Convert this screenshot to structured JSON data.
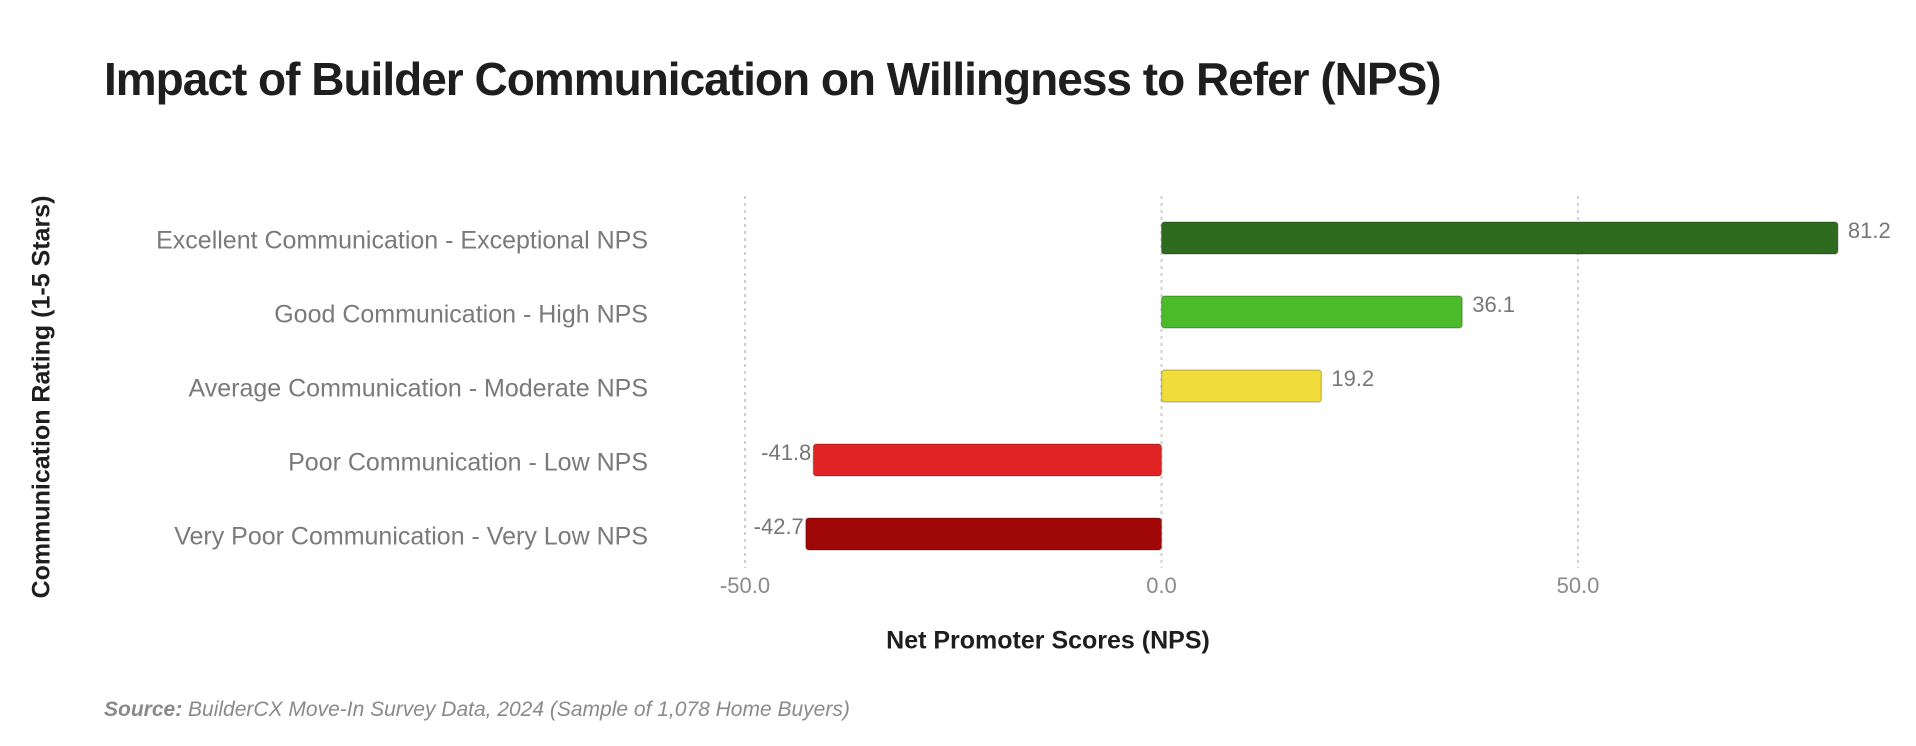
{
  "chart_data": {
    "type": "bar",
    "orientation": "horizontal",
    "title": "Impact of Builder Communication on Willingness to Refer (NPS)",
    "categories": [
      "Excellent Communication - Exceptional NPS",
      "Good Communication - High NPS",
      "Average Communication - Moderate NPS",
      "Poor Communication - Low NPS",
      "Very Poor Communication - Very Low NPS"
    ],
    "values": [
      81.2,
      36.1,
      19.2,
      -41.8,
      -42.7
    ],
    "colors": [
      "#2e6b1f",
      "#4cbb2a",
      "#f0dc3a",
      "#e02424",
      "#a00808"
    ],
    "xlim": [
      -50,
      85
    ],
    "xticks": [
      {
        "value": -50,
        "label": "-50.0"
      },
      {
        "value": 0,
        "label": "0.0"
      },
      {
        "value": 50,
        "label": "50.0"
      }
    ],
    "grid": true,
    "x_label": "Net Promoter Scores (NPS)",
    "y_label": "Communication Rating (1-5 Stars)",
    "source_label": "Source:",
    "source": "BuilderCX Move-In Survey Data, 2024 (Sample of 1,078 Home Buyers)"
  }
}
